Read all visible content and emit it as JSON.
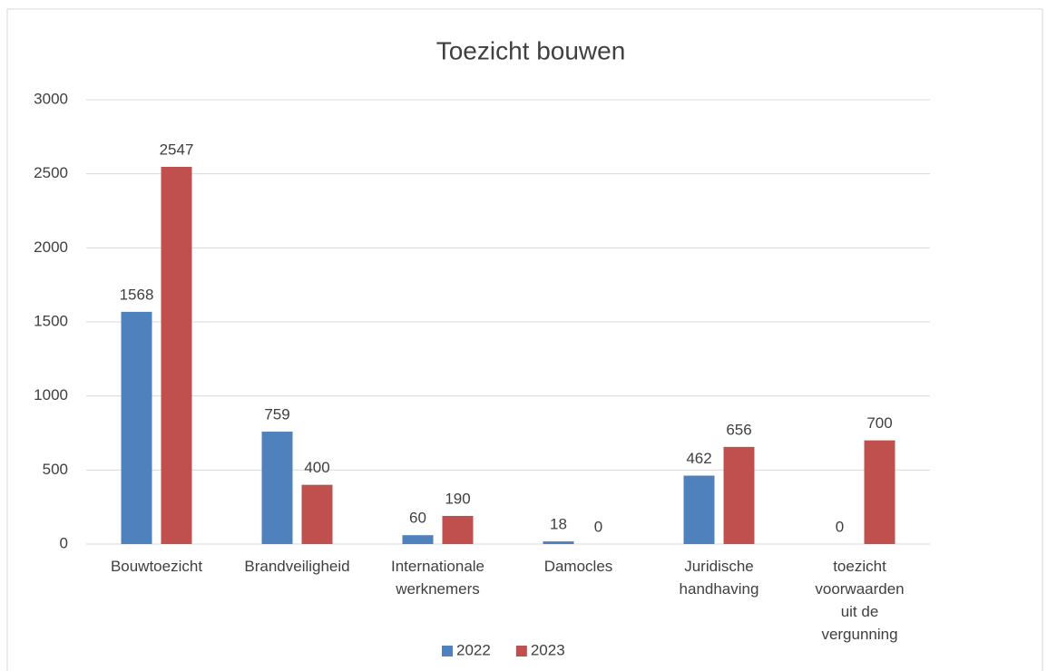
{
  "chart_data": {
    "type": "bar",
    "title": "Toezicht bouwen",
    "categories": [
      "Bouwtoezicht",
      "Brandveiligheid",
      "Internationale werknemers",
      "Damocles",
      "Juridische handhaving",
      "toezicht voorwaarden uit de vergunning"
    ],
    "series": [
      {
        "name": "2022",
        "color": "#4f81bd",
        "values": [
          1568,
          759,
          60,
          18,
          462,
          0
        ]
      },
      {
        "name": "2023",
        "color": "#c0504d",
        "values": [
          2547,
          400,
          190,
          0,
          656,
          700
        ]
      }
    ],
    "ylim": [
      0,
      3000
    ],
    "yticks": [
      0,
      500,
      1000,
      1500,
      2000,
      2500,
      3000
    ],
    "grid": true,
    "legend": "bottom"
  }
}
